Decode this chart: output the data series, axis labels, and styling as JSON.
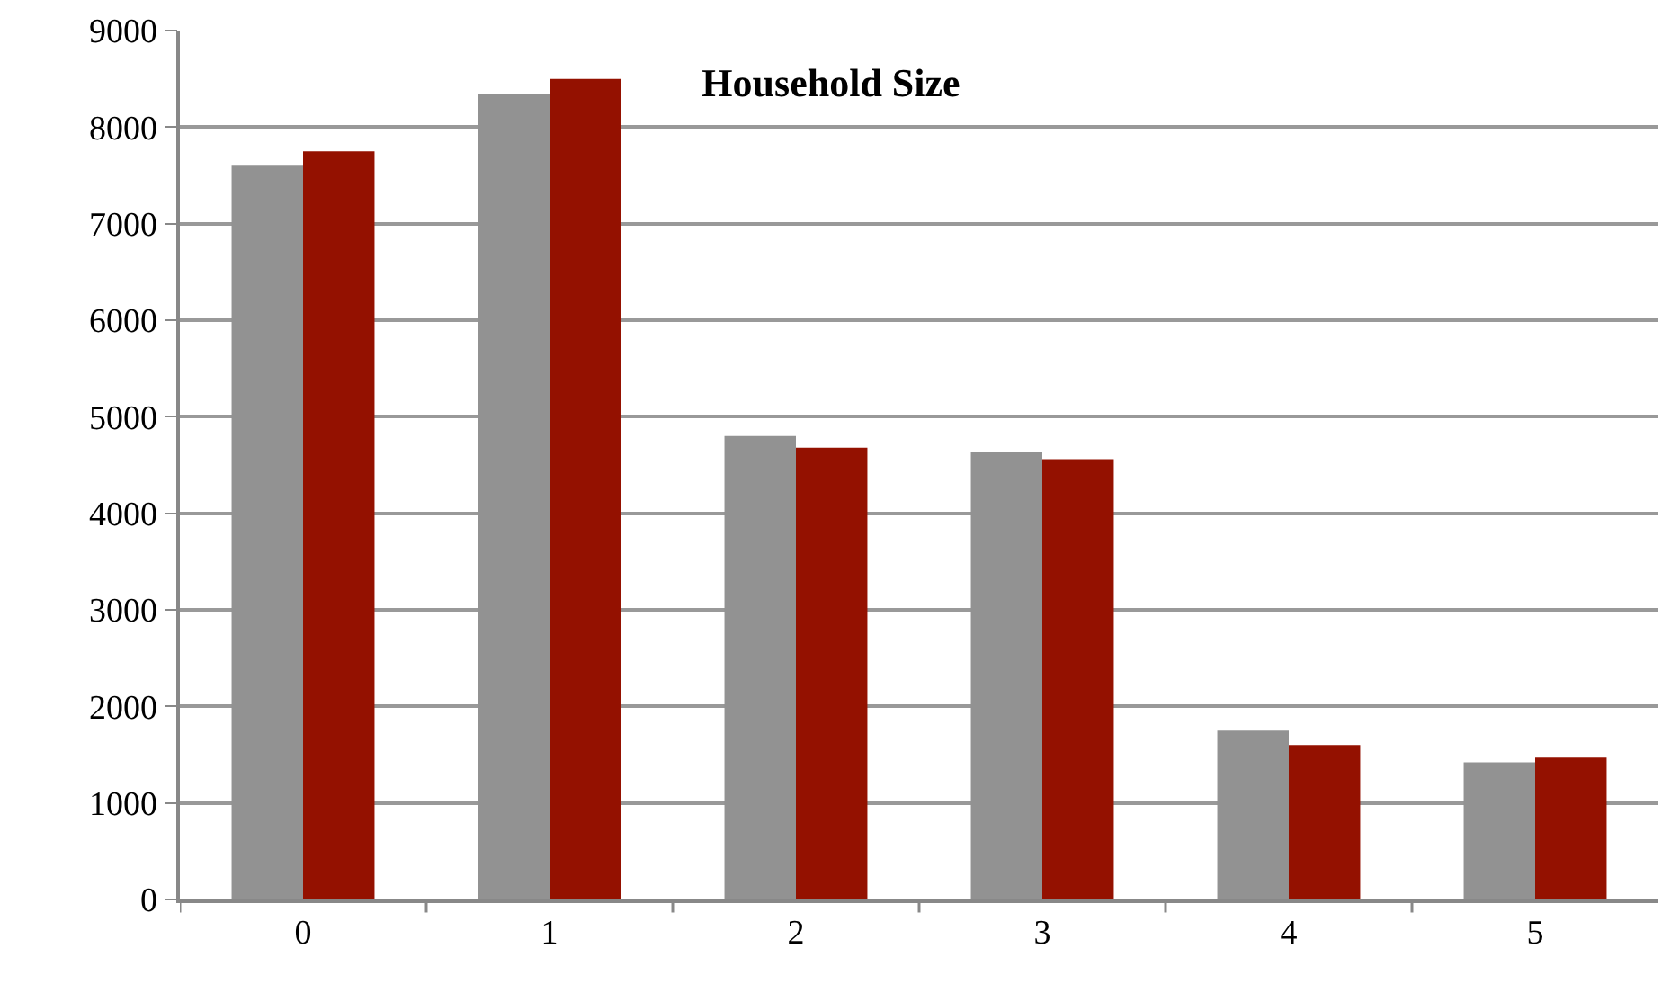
{
  "chart_data": {
    "type": "bar",
    "title": "Household Size",
    "categories": [
      "0",
      "1",
      "2",
      "3",
      "4",
      "5"
    ],
    "series": [
      {
        "color": "#929292",
        "values": [
          7600,
          8340,
          4800,
          4640,
          1750,
          1420
        ]
      },
      {
        "color": "#941100",
        "values": [
          7750,
          8500,
          4680,
          4560,
          1600,
          1470
        ]
      }
    ],
    "ylim": [
      0,
      9000
    ],
    "yticks": [
      0,
      1000,
      2000,
      3000,
      4000,
      5000,
      6000,
      7000,
      8000,
      9000
    ],
    "grid": "y"
  }
}
